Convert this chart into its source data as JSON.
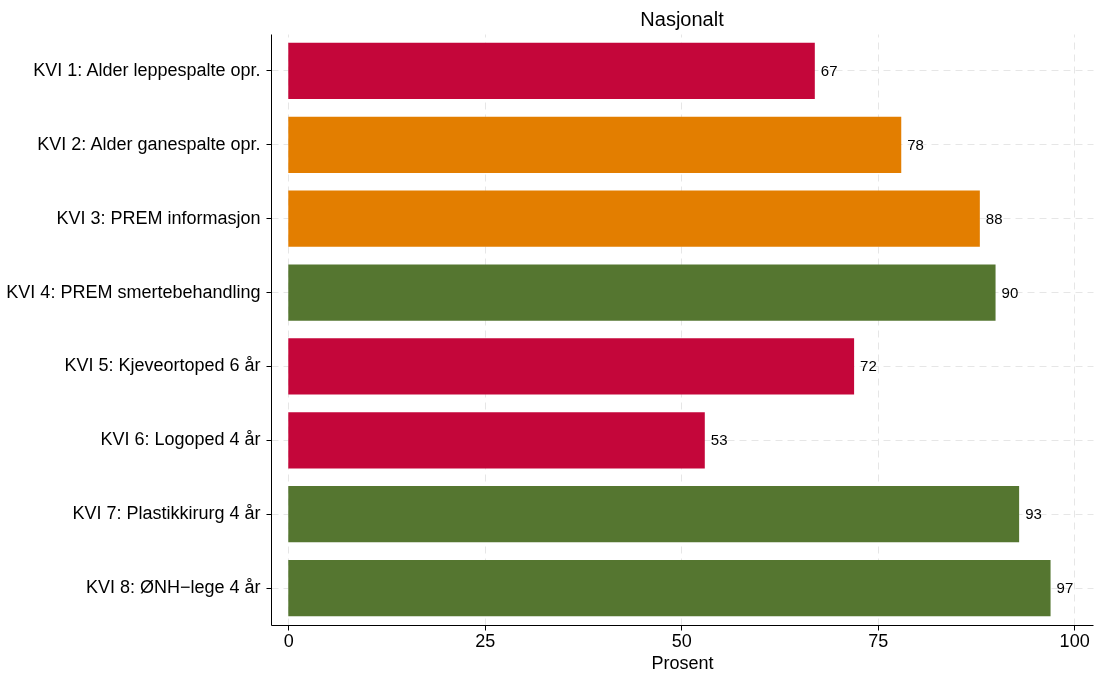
{
  "chart_data": {
    "type": "bar",
    "orientation": "horizontal",
    "title": "Nasjonalt",
    "xlabel": "Prosent",
    "categories": [
      "KVI 1: Alder leppespalte opr.",
      "KVI 2: Alder ganespalte opr.",
      "KVI 3: PREM informasjon",
      "KVI 4: PREM smertebehandling",
      "KVI 5: Kjeveortoped 6 år",
      "KVI 6: Logoped 4 år",
      "KVI 7: Plastikkirurg 4 år",
      "KVI 8: ØNH−lege 4 år"
    ],
    "values": [
      67,
      78,
      88,
      90,
      72,
      53,
      93,
      97
    ],
    "colors": [
      "#c4063a",
      "#e37e00",
      "#e37e00",
      "#557630",
      "#c4063a",
      "#c4063a",
      "#557630",
      "#557630"
    ],
    "xlim": [
      -2.2,
      102.4
    ],
    "xticks": [
      0,
      25,
      50,
      75,
      100
    ],
    "grid": true,
    "data_labels": true
  }
}
